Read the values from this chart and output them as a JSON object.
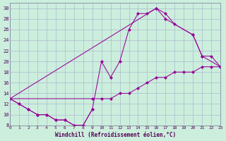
{
  "xlabel": "Windchill (Refroidissement éolien,°C)",
  "background_color": "#cceedd",
  "grid_color": "#aabbcc",
  "line_color": "#990099",
  "xlim": [
    0,
    23
  ],
  "ylim": [
    8,
    31
  ],
  "xticks": [
    0,
    1,
    2,
    3,
    4,
    5,
    6,
    7,
    8,
    9,
    10,
    11,
    12,
    13,
    14,
    15,
    16,
    17,
    18,
    19,
    20,
    21,
    22,
    23
  ],
  "yticks": [
    8,
    10,
    12,
    14,
    16,
    18,
    20,
    22,
    24,
    26,
    28,
    30
  ],
  "series": [
    {
      "x": [
        0,
        1,
        2,
        3,
        4,
        5,
        6,
        7,
        8,
        9
      ],
      "y": [
        13,
        12,
        11,
        10,
        10,
        9,
        9,
        8,
        8,
        11
      ]
    },
    {
      "x": [
        0,
        1,
        2,
        3,
        4,
        5,
        6,
        7,
        8,
        9,
        10,
        11,
        12,
        13,
        14,
        15,
        16,
        17,
        20,
        21,
        23
      ],
      "y": [
        13,
        12,
        11,
        10,
        10,
        9,
        9,
        8,
        8,
        11,
        20,
        17,
        20,
        26,
        29,
        29,
        30,
        28,
        25,
        21,
        19
      ]
    },
    {
      "x": [
        0,
        16,
        17,
        18,
        20,
        21,
        22,
        23
      ],
      "y": [
        13,
        30,
        29,
        27,
        25,
        21,
        21,
        19
      ]
    },
    {
      "x": [
        0,
        9,
        10,
        11,
        12,
        13,
        14,
        15,
        16,
        17,
        18,
        19,
        20,
        21,
        22,
        23
      ],
      "y": [
        13,
        13,
        13,
        13,
        14,
        14,
        15,
        16,
        17,
        17,
        18,
        18,
        18,
        19,
        19,
        19
      ]
    }
  ]
}
